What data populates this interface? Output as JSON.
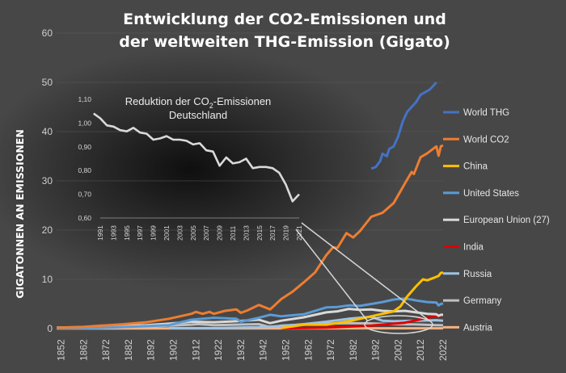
{
  "chart_data": [
    {
      "type": "line",
      "title": "Entwicklung der CO2-Emissionen und der weltweiten THG-Emission (Gigato)",
      "title_lines": [
        "Entwicklung der CO2-Emissionen und",
        "der weltweiten THG-Emission (Gigato)"
      ],
      "xlabel": "",
      "ylabel": "GIGATONNEN AN EMISSIONEN",
      "xlim": [
        1850,
        2022
      ],
      "ylim": [
        0,
        60
      ],
      "x_ticks": [
        1852,
        1862,
        1872,
        1882,
        1892,
        1902,
        1912,
        1922,
        1932,
        1942,
        1952,
        1962,
        1972,
        1982,
        1992,
        2002,
        2012,
        2022
      ],
      "y_ticks": [
        0,
        10,
        20,
        30,
        40,
        50,
        60
      ],
      "legend_position": "right",
      "series": [
        {
          "name": "World THG",
          "color": "#4472C4",
          "x": [
            1990,
            1992,
            1994,
            1995,
            1997,
            1998,
            2000,
            2002,
            2004,
            2006,
            2008,
            2010,
            2012,
            2014,
            2016,
            2018,
            2019
          ],
          "y": [
            32.5,
            32.8,
            34,
            35.5,
            35,
            36.5,
            37,
            39,
            42,
            44,
            45,
            46,
            47.5,
            48,
            48.5,
            49.5,
            50
          ]
        },
        {
          "name": "World CO2",
          "color": "#ED7D31",
          "x": [
            1850,
            1860,
            1870,
            1880,
            1890,
            1900,
            1910,
            1912,
            1915,
            1918,
            1920,
            1925,
            1930,
            1932,
            1935,
            1940,
            1945,
            1946,
            1950,
            1955,
            1960,
            1965,
            1970,
            1973,
            1975,
            1979,
            1982,
            1985,
            1990,
            1995,
            2000,
            2005,
            2008,
            2009,
            2012,
            2015,
            2019,
            2020,
            2021,
            2022
          ],
          "y": [
            0.2,
            0.3,
            0.6,
            0.9,
            1.3,
            2.0,
            3.0,
            3.4,
            3.0,
            3.4,
            3.0,
            3.6,
            3.9,
            3.2,
            3.7,
            4.8,
            3.9,
            4.3,
            6.0,
            7.5,
            9.4,
            11.4,
            14.9,
            16.5,
            16.4,
            19.4,
            18.5,
            19.8,
            22.7,
            23.5,
            25.5,
            29.5,
            31.8,
            31.4,
            34.8,
            35.6,
            37.0,
            35.1,
            37.0,
            37.2
          ]
        },
        {
          "name": "China",
          "color": "#FFC000",
          "x": [
            1950,
            1960,
            1970,
            1980,
            1990,
            2000,
            2003,
            2006,
            2010,
            2013,
            2015,
            2019,
            2020,
            2021,
            2022
          ],
          "y": [
            0.1,
            0.8,
            0.8,
            1.5,
            2.5,
            3.5,
            4.5,
            6.5,
            8.6,
            10.0,
            9.8,
            10.5,
            10.7,
            11.3,
            11.4
          ]
        },
        {
          "name": "United States",
          "color": "#5B9BD5",
          "x": [
            1850,
            1870,
            1890,
            1900,
            1910,
            1920,
            1930,
            1932,
            1940,
            1945,
            1950,
            1960,
            1970,
            1975,
            1980,
            1985,
            1990,
            1995,
            2000,
            2005,
            2008,
            2010,
            2015,
            2019,
            2020,
            2021,
            2022
          ],
          "y": [
            0.05,
            0.15,
            0.5,
            0.7,
            1.8,
            2.2,
            2.0,
            1.4,
            2.2,
            2.8,
            2.5,
            2.9,
            4.3,
            4.4,
            4.7,
            4.6,
            5.0,
            5.4,
            5.9,
            6.1,
            5.9,
            5.7,
            5.4,
            5.3,
            4.7,
            5.0,
            5.1
          ]
        },
        {
          "name": "European Union (27)",
          "color": "#D9D9D9",
          "x": [
            1850,
            1870,
            1890,
            1900,
            1910,
            1920,
            1930,
            1940,
            1945,
            1950,
            1960,
            1970,
            1975,
            1980,
            1985,
            1990,
            1995,
            2000,
            2005,
            2010,
            2015,
            2019,
            2020,
            2021,
            2022
          ],
          "y": [
            0.2,
            0.4,
            0.7,
            1.0,
            1.4,
            1.3,
            1.5,
            1.8,
            1.1,
            1.6,
            2.3,
            3.3,
            3.5,
            4.0,
            3.8,
            3.9,
            3.6,
            3.5,
            3.6,
            3.3,
            3.0,
            2.9,
            2.6,
            2.8,
            2.8
          ]
        },
        {
          "name": "India",
          "color": "#E00000",
          "x": [
            1950,
            1970,
            1990,
            2000,
            2005,
            2010,
            2015,
            2019,
            2020,
            2021,
            2022
          ],
          "y": [
            0.05,
            0.2,
            0.6,
            1.0,
            1.2,
            1.7,
            2.2,
            2.6,
            2.4,
            2.7,
            2.8
          ]
        },
        {
          "name": "Russia",
          "color": "#9DC3E6",
          "x": [
            1900,
            1920,
            1940,
            1950,
            1960,
            1970,
            1980,
            1990,
            1995,
            2000,
            2010,
            2019,
            2022
          ],
          "y": [
            0.1,
            0.1,
            0.3,
            0.5,
            0.9,
            1.4,
            2.0,
            2.4,
            1.6,
            1.5,
            1.6,
            1.7,
            1.6
          ]
        },
        {
          "name": "Germany",
          "color": "#BFBFBF",
          "x": [
            1850,
            1870,
            1890,
            1900,
            1910,
            1913,
            1920,
            1930,
            1940,
            1945,
            1950,
            1960,
            1970,
            1980,
            1990,
            2000,
            2010,
            2019,
            2022
          ],
          "y": [
            0.1,
            0.2,
            0.4,
            0.6,
            0.8,
            0.9,
            0.7,
            0.8,
            0.9,
            0.3,
            0.6,
            0.8,
            1.0,
            1.1,
            1.05,
            0.9,
            0.83,
            0.7,
            0.67
          ]
        },
        {
          "name": "Austria",
          "color": "#F4B183",
          "x": [
            1850,
            1900,
            1950,
            1990,
            2000,
            2010,
            2019,
            2022
          ],
          "y": [
            0.01,
            0.04,
            0.03,
            0.06,
            0.065,
            0.07,
            0.068,
            0.06
          ]
        }
      ]
    },
    {
      "type": "line",
      "title_line1_prefix": "Reduktion  der CO",
      "title_line1_sub": "2",
      "title_line1_suffix": "-Emissionen",
      "title_line2": "Deutschland",
      "xlim": [
        1991,
        2021
      ],
      "ylim": [
        0.6,
        1.1
      ],
      "x_ticks": [
        1991,
        1993,
        1995,
        1997,
        1999,
        2001,
        2003,
        2005,
        2007,
        2009,
        2011,
        2013,
        2015,
        2017,
        2019,
        2021
      ],
      "y_ticks": [
        "1,10",
        "1,00",
        "0,90",
        "0,80",
        "0,70",
        "0,60"
      ],
      "y_tick_values": [
        1.1,
        1.0,
        0.9,
        0.8,
        0.7,
        0.6
      ],
      "series": [
        {
          "name": "Germany",
          "color": "#D9D9D9",
          "x": [
            1990,
            1991,
            1992,
            1993,
            1994,
            1995,
            1996,
            1997,
            1998,
            1999,
            2000,
            2001,
            2002,
            2003,
            2004,
            2005,
            2006,
            2007,
            2008,
            2009,
            2010,
            2011,
            2012,
            2013,
            2014,
            2015,
            2016,
            2017,
            2018,
            2019,
            2020,
            2021
          ],
          "y": [
            1.04,
            1.02,
            0.99,
            0.985,
            0.97,
            0.965,
            0.98,
            0.96,
            0.955,
            0.93,
            0.935,
            0.945,
            0.93,
            0.93,
            0.925,
            0.91,
            0.915,
            0.885,
            0.88,
            0.82,
            0.855,
            0.83,
            0.835,
            0.85,
            0.81,
            0.815,
            0.815,
            0.81,
            0.79,
            0.74,
            0.67,
            0.7
          ]
        }
      ]
    }
  ]
}
